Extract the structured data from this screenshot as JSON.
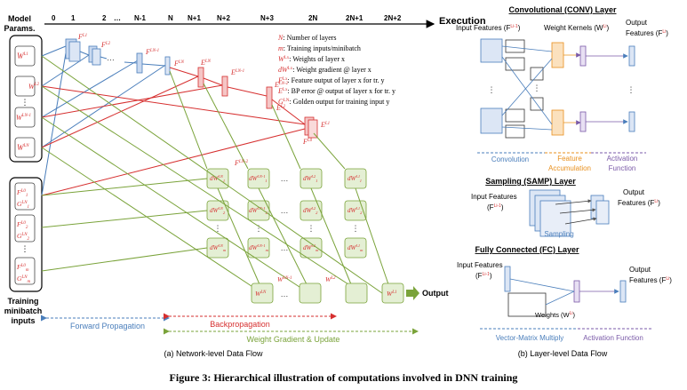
{
  "network": {
    "col_label_0": "0",
    "col_label_1": "1",
    "col_label_2": "2",
    "col_label_dots": "…",
    "col_label_nm1": "N-1",
    "col_label_n": "N",
    "col_label_np1": "N+1",
    "col_label_np2": "N+2",
    "col_label_np3": "N+3",
    "col_label_2n": "2N",
    "col_label_2np1": "2N+1",
    "col_label_2np2": "2N+2",
    "execution_label": "Execution",
    "model_params_title": "Model",
    "model_params_title2": "Params.",
    "training_title_1": "Training",
    "training_title_2": "minibatch",
    "training_title_3": "inputs",
    "weights": [
      "W",
      "W",
      "W",
      "W"
    ],
    "weight_sups": [
      "L1",
      "L2",
      "LN-1",
      "LN"
    ],
    "feat_labels": [
      "F",
      "F",
      "F",
      "F"
    ],
    "feat_sups": [
      "L1",
      "L2",
      "LN-1",
      "LN"
    ],
    "err_labels": [
      "E",
      "E",
      "E",
      "E",
      "E"
    ],
    "err_sups": [
      "LN",
      "LN-1",
      "LN-2",
      "L2",
      "L1"
    ],
    "f0_label": "F",
    "f0_sup": "L0",
    "fn2_label": "F",
    "fn2_sup": "LN-2",
    "input_pairs": [
      {
        "f": "F",
        "fs": "L0",
        "fsub": "1",
        "g": "G",
        "gs": "LN",
        "gsub": "1"
      },
      {
        "f": "F",
        "fs": "L0",
        "fsub": "2",
        "g": "G",
        "gs": "LN",
        "gsub": "2"
      },
      {
        "f": "F",
        "fs": "L0",
        "fsub": "m",
        "g": "G",
        "gs": "LN",
        "gsub": "m"
      }
    ],
    "dots_vertical": "⋮",
    "dw_label": "dW",
    "grad_cells": [
      {
        "sup": "LN",
        "sub": "1"
      },
      {
        "sup": "LN",
        "sub": "2"
      },
      {
        "sup": "LN",
        "sub": "m"
      },
      {
        "sup": "LN-1",
        "sub": "1"
      },
      {
        "sup": "LN-1",
        "sub": "2"
      },
      {
        "sup": "LN-1",
        "sub": "m"
      },
      {
        "sup": "L2",
        "sub": "1"
      },
      {
        "sup": "L2",
        "sub": "2"
      },
      {
        "sup": "L2",
        "sub": "m"
      },
      {
        "sup": "L1",
        "sub": "1"
      },
      {
        "sup": "L1",
        "sub": "2"
      },
      {
        "sup": "L1",
        "sub": "m"
      }
    ],
    "updated_weights": [
      {
        "w": "W",
        "sup": "LN"
      },
      {
        "w": "W",
        "sup": "LN-1"
      },
      {
        "w": "W",
        "sup": "L2"
      },
      {
        "w": "W",
        "sup": "L1"
      }
    ],
    "output_label": "Output",
    "forward_label": "Forward Propagation",
    "backprop_label": "Backpropagation",
    "wgrad_label": "Weight Gradient & Update",
    "subcaption": "(a) Network-level Data Flow",
    "legend": [
      {
        "sym": "N",
        "sup": "",
        "text": ": Number of layers"
      },
      {
        "sym": "m",
        "sup": "",
        "text": ": Training inputs/minibatch"
      },
      {
        "sym": "W",
        "sup": "Lx",
        "text": ": Weights of layer x"
      },
      {
        "sym": "dW",
        "sup": "Lx",
        "text": ": Weight gradient @ layer x"
      },
      {
        "sym": "F",
        "sup": "Lx",
        "text": ": Feature output of layer x for tr. y"
      },
      {
        "sym": "E",
        "sup": "Lx",
        "text": ": BP error @ output of layer x for tr. y"
      },
      {
        "sym": "G",
        "sup": "LN",
        "text": ": Golden output for training input y"
      }
    ]
  },
  "layers": {
    "conv_title": "Convolutional (CONV) Layer",
    "conv_in_label": "Input Features (F",
    "conv_in_sup": "Li-1",
    "conv_kern_label": "Weight Kernels (W",
    "conv_kern_sup": "Li",
    "conv_out_label_1": "Output",
    "conv_out_label_2": "Features (F",
    "conv_out_sup": "Li",
    "conv_stage_1": "Convolution",
    "conv_stage_2a": "Feature",
    "conv_stage_2b": "Accumulation",
    "conv_stage_3a": "Activation",
    "conv_stage_3b": "Function",
    "samp_title": "Sampling (SAMP) Layer",
    "samp_in_1": "Input Features",
    "samp_in_2": "(F",
    "samp_in_sup": "Li-1",
    "samp_out_1": "Output",
    "samp_out_2": "Features (F",
    "samp_out_sup": "Li",
    "samp_stage": "Sampling",
    "fc_title": "Fully Connected (FC) Layer",
    "fc_in_1": "Input Features",
    "fc_in_2": "(F",
    "fc_in_sup": "Li-1",
    "fc_out_1": "Output",
    "fc_out_2": "Features (F",
    "fc_out_sup": "Li",
    "fc_weights": "Weights (W",
    "fc_weights_sup": "Li",
    "fc_stage_1": "Vector-Matrix Multiply",
    "fc_stage_2": "Activation Function",
    "subcaption": "(b) Layer-level Data Flow"
  },
  "figure_caption": "Figure 3: Hierarchical illustration of computations involved in DNN training",
  "colors": {
    "blue": "#4a7ebb",
    "red": "#d62f2f",
    "green": "#7aa33a",
    "orange": "#e8901e",
    "purple": "#7a5aa8",
    "lightblue": "#dce6f5",
    "lightgreen": "#e4efd4"
  }
}
